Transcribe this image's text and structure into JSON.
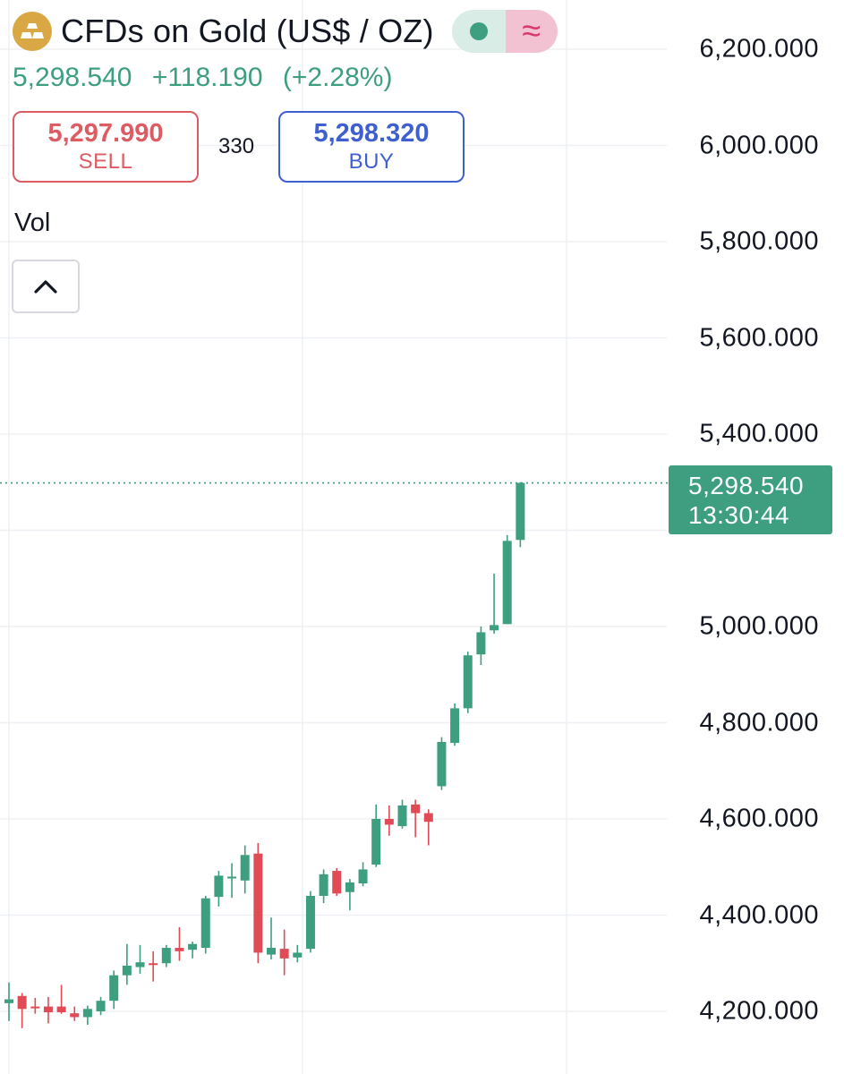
{
  "header": {
    "title": "CFDs on Gold (US$ / OZ)",
    "icon": "gold-bars-icon",
    "status": {
      "market_icon": "market-open-dot-icon",
      "delay_icon": "approx-wave-icon"
    }
  },
  "quote": {
    "last": "5,298.540",
    "change": "+118.190",
    "change_pct": "(+2.28%)"
  },
  "trade": {
    "sell_price": "5,297.990",
    "sell_label": "SELL",
    "spread": "330",
    "buy_price": "5,298.320",
    "buy_label": "BUY"
  },
  "indicator": {
    "vol_label": "Vol",
    "collapse_icon": "chevron-up-icon"
  },
  "price_tag": {
    "price": "5,298.540",
    "countdown": "13:30:44"
  },
  "colors": {
    "up": "#3d9e80",
    "down": "#e04b55",
    "sell": "#dd5b62",
    "buy": "#3f5fd1",
    "grid": "#eef0f3"
  },
  "chart_data": {
    "type": "candlestick",
    "y_axis": {
      "labels": [
        "6,200.000",
        "6,000.000",
        "5,800.000",
        "5,600.000",
        "5,400.000",
        "5,000.000",
        "4,800.000",
        "4,600.000",
        "4,400.000",
        "4,200.000"
      ],
      "range": [
        4120,
        6300
      ]
    },
    "grid": true,
    "last_price_line": 5298.54,
    "candles": [
      {
        "o": 4217,
        "h": 4260,
        "l": 4180,
        "c": 4225
      },
      {
        "o": 4232,
        "h": 4238,
        "l": 4165,
        "c": 4205
      },
      {
        "o": 4210,
        "h": 4228,
        "l": 4195,
        "c": 4208
      },
      {
        "o": 4210,
        "h": 4230,
        "l": 4175,
        "c": 4198
      },
      {
        "o": 4210,
        "h": 4255,
        "l": 4195,
        "c": 4198
      },
      {
        "o": 4196,
        "h": 4210,
        "l": 4180,
        "c": 4188
      },
      {
        "o": 4188,
        "h": 4212,
        "l": 4172,
        "c": 4205
      },
      {
        "o": 4200,
        "h": 4230,
        "l": 4192,
        "c": 4222
      },
      {
        "o": 4222,
        "h": 4285,
        "l": 4205,
        "c": 4275
      },
      {
        "o": 4275,
        "h": 4340,
        "l": 4255,
        "c": 4295
      },
      {
        "o": 4292,
        "h": 4338,
        "l": 4278,
        "c": 4302
      },
      {
        "o": 4300,
        "h": 4325,
        "l": 4262,
        "c": 4298
      },
      {
        "o": 4300,
        "h": 4338,
        "l": 4292,
        "c": 4332
      },
      {
        "o": 4332,
        "h": 4375,
        "l": 4305,
        "c": 4325
      },
      {
        "o": 4328,
        "h": 4345,
        "l": 4310,
        "c": 4340
      },
      {
        "o": 4332,
        "h": 4440,
        "l": 4320,
        "c": 4435
      },
      {
        "o": 4438,
        "h": 4492,
        "l": 4418,
        "c": 4482
      },
      {
        "o": 4478,
        "h": 4508,
        "l": 4436,
        "c": 4480
      },
      {
        "o": 4472,
        "h": 4545,
        "l": 4445,
        "c": 4525
      },
      {
        "o": 4528,
        "h": 4550,
        "l": 4300,
        "c": 4322
      },
      {
        "o": 4318,
        "h": 4395,
        "l": 4308,
        "c": 4332
      },
      {
        "o": 4330,
        "h": 4370,
        "l": 4275,
        "c": 4310
      },
      {
        "o": 4312,
        "h": 4338,
        "l": 4302,
        "c": 4322
      },
      {
        "o": 4330,
        "h": 4450,
        "l": 4322,
        "c": 4440
      },
      {
        "o": 4440,
        "h": 4495,
        "l": 4425,
        "c": 4485
      },
      {
        "o": 4492,
        "h": 4498,
        "l": 4440,
        "c": 4445
      },
      {
        "o": 4448,
        "h": 4475,
        "l": 4410,
        "c": 4468
      },
      {
        "o": 4466,
        "h": 4510,
        "l": 4460,
        "c": 4495
      },
      {
        "o": 4505,
        "h": 4630,
        "l": 4500,
        "c": 4600
      },
      {
        "o": 4600,
        "h": 4628,
        "l": 4565,
        "c": 4588
      },
      {
        "o": 4585,
        "h": 4640,
        "l": 4580,
        "c": 4628
      },
      {
        "o": 4630,
        "h": 4640,
        "l": 4562,
        "c": 4612
      },
      {
        "o": 4612,
        "h": 4620,
        "l": 4545,
        "c": 4594
      },
      {
        "o": 4668,
        "h": 4770,
        "l": 4660,
        "c": 4760
      },
      {
        "o": 4758,
        "h": 4840,
        "l": 4752,
        "c": 4830
      },
      {
        "o": 4830,
        "h": 4948,
        "l": 4820,
        "c": 4940
      },
      {
        "o": 4942,
        "h": 5000,
        "l": 4920,
        "c": 4988
      },
      {
        "o": 4992,
        "h": 5110,
        "l": 4985,
        "c": 5003
      },
      {
        "o": 5005,
        "h": 5190,
        "l": 5005,
        "c": 5178
      },
      {
        "o": 5180,
        "h": 5300,
        "l": 5165,
        "c": 5298.54
      }
    ]
  }
}
